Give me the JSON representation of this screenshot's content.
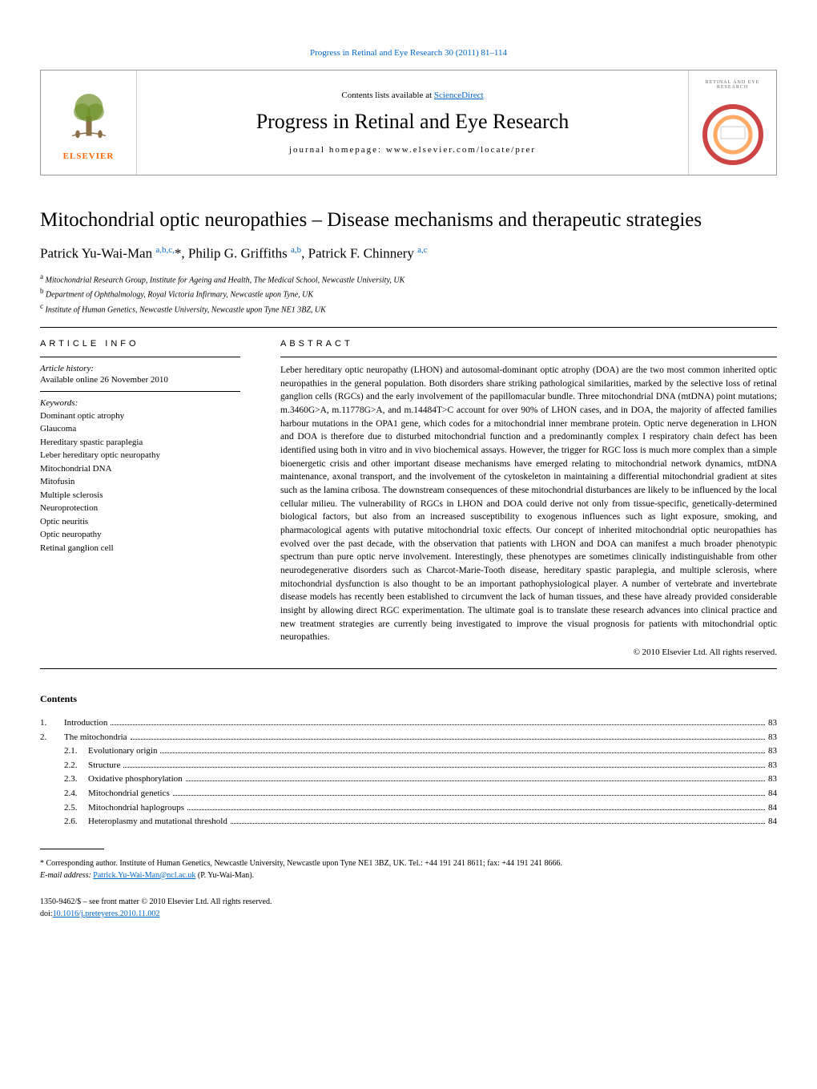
{
  "journal_ref": "Progress in Retinal and Eye Research 30 (2011) 81–114",
  "header": {
    "contents_prefix": "Contents lists available at ",
    "contents_link": "ScienceDirect",
    "journal_title": "Progress in Retinal and Eye Research",
    "homepage": "journal homepage: www.elsevier.com/locate/prer",
    "publisher": "ELSEVIER",
    "cover_label": "RETINAL AND EYE RESEARCH"
  },
  "title": "Mitochondrial optic neuropathies – Disease mechanisms and therapeutic strategies",
  "authors_html": "Patrick Yu-Wai-Man <sup>a,b,c,</sup>*, Philip G. Griffiths <sup>a,b</sup>, Patrick F. Chinnery <sup>a,c</sup>",
  "affiliations": [
    {
      "sup": "a",
      "text": "Mitochondrial Research Group, Institute for Ageing and Health, The Medical School, Newcastle University, UK"
    },
    {
      "sup": "b",
      "text": "Department of Ophthalmology, Royal Victoria Infirmary, Newcastle upon Tyne, UK"
    },
    {
      "sup": "c",
      "text": "Institute of Human Genetics, Newcastle University, Newcastle upon Tyne NE1 3BZ, UK"
    }
  ],
  "article_info_heading": "ARTICLE INFO",
  "abstract_heading": "ABSTRACT",
  "history": {
    "label": "Article history:",
    "text": "Available online 26 November 2010"
  },
  "keywords": {
    "label": "Keywords:",
    "items": [
      "Dominant optic atrophy",
      "Glaucoma",
      "Hereditary spastic paraplegia",
      "Leber hereditary optic neuropathy",
      "Mitochondrial DNA",
      "Mitofusin",
      "Multiple sclerosis",
      "Neuroprotection",
      "Optic neuritis",
      "Optic neuropathy",
      "Retinal ganglion cell"
    ]
  },
  "abstract": "Leber hereditary optic neuropathy (LHON) and autosomal-dominant optic atrophy (DOA) are the two most common inherited optic neuropathies in the general population. Both disorders share striking pathological similarities, marked by the selective loss of retinal ganglion cells (RGCs) and the early involvement of the papillomacular bundle. Three mitochondrial DNA (mtDNA) point mutations; m.3460G>A, m.11778G>A, and m.14484T>C account for over 90% of LHON cases, and in DOA, the majority of affected families harbour mutations in the OPA1 gene, which codes for a mitochondrial inner membrane protein. Optic nerve degeneration in LHON and DOA is therefore due to disturbed mitochondrial function and a predominantly complex I respiratory chain defect has been identified using both in vitro and in vivo biochemical assays. However, the trigger for RGC loss is much more complex than a simple bioenergetic crisis and other important disease mechanisms have emerged relating to mitochondrial network dynamics, mtDNA maintenance, axonal transport, and the involvement of the cytoskeleton in maintaining a differential mitochondrial gradient at sites such as the lamina cribosa. The downstream consequences of these mitochondrial disturbances are likely to be influenced by the local cellular milieu. The vulnerability of RGCs in LHON and DOA could derive not only from tissue-specific, genetically-determined biological factors, but also from an increased susceptibility to exogenous influences such as light exposure, smoking, and pharmacological agents with putative mitochondrial toxic effects. Our concept of inherited mitochondrial optic neuropathies has evolved over the past decade, with the observation that patients with LHON and DOA can manifest a much broader phenotypic spectrum than pure optic nerve involvement. Interestingly, these phenotypes are sometimes clinically indistinguishable from other neurodegenerative disorders such as Charcot-Marie-Tooth disease, hereditary spastic paraplegia, and multiple sclerosis, where mitochondrial dysfunction is also thought to be an important pathophysiological player. A number of vertebrate and invertebrate disease models has recently been established to circumvent the lack of human tissues, and these have already provided considerable insight by allowing direct RGC experimentation. The ultimate goal is to translate these research advances into clinical practice and new treatment strategies are currently being investigated to improve the visual prognosis for patients with mitochondrial optic neuropathies.",
  "copyright": "© 2010 Elsevier Ltd. All rights reserved.",
  "contents_heading": "Contents",
  "toc": [
    {
      "num": "1.",
      "label": "Introduction",
      "page": "83",
      "level": 1
    },
    {
      "num": "2.",
      "label": "The mitochondria",
      "page": "83",
      "level": 1
    },
    {
      "num": "2.1.",
      "label": "Evolutionary origin",
      "page": "83",
      "level": 2
    },
    {
      "num": "2.2.",
      "label": "Structure",
      "page": "83",
      "level": 2
    },
    {
      "num": "2.3.",
      "label": "Oxidative phosphorylation",
      "page": "83",
      "level": 2
    },
    {
      "num": "2.4.",
      "label": "Mitochondrial genetics",
      "page": "84",
      "level": 2
    },
    {
      "num": "2.5.",
      "label": "Mitochondrial haplogroups",
      "page": "84",
      "level": 2
    },
    {
      "num": "2.6.",
      "label": "Heteroplasmy and mutational threshold",
      "page": "84",
      "level": 2
    }
  ],
  "corresponding": {
    "text": "* Corresponding author. Institute of Human Genetics, Newcastle University, Newcastle upon Tyne NE1 3BZ, UK. Tel.: +44 191 241 8611; fax: +44 191 241 8666.",
    "email_label": "E-mail address: ",
    "email": "Patrick.Yu-Wai-Man@ncl.ac.uk",
    "email_suffix": " (P. Yu-Wai-Man)."
  },
  "front_matter": {
    "issn": "1350-9462/$ – see front matter © 2010 Elsevier Ltd. All rights reserved.",
    "doi_prefix": "doi:",
    "doi": "10.1016/j.preteyeres.2010.11.002"
  },
  "colors": {
    "link": "#0066cc",
    "elsevier": "#ff6600"
  }
}
